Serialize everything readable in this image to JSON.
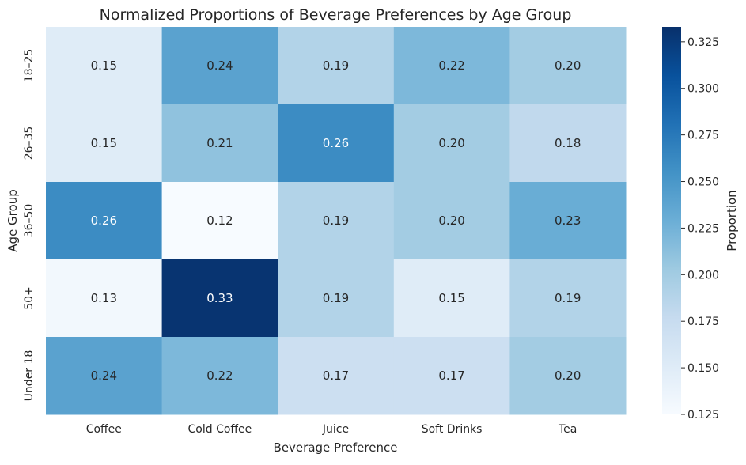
{
  "chart_data": {
    "type": "heatmap",
    "title": "Normalized Proportions of Beverage Preferences by Age Group",
    "xlabel": "Beverage Preference",
    "ylabel": "Age Group",
    "x_categories": [
      "Coffee",
      "Cold Coffee",
      "Juice",
      "Soft Drinks",
      "Tea"
    ],
    "y_categories": [
      "18–25",
      "26–35",
      "36–50",
      "50+",
      "Under 18"
    ],
    "values": [
      [
        0.15,
        0.24,
        0.19,
        0.22,
        0.2
      ],
      [
        0.15,
        0.21,
        0.26,
        0.2,
        0.18
      ],
      [
        0.26,
        0.12,
        0.19,
        0.2,
        0.23
      ],
      [
        0.13,
        0.33,
        0.19,
        0.15,
        0.19
      ],
      [
        0.24,
        0.22,
        0.17,
        0.17,
        0.2
      ]
    ],
    "value_labels": [
      [
        "0.15",
        "0.24",
        "0.19",
        "0.22",
        "0.20"
      ],
      [
        "0.15",
        "0.21",
        "0.26",
        "0.20",
        "0.18"
      ],
      [
        "0.26",
        "0.12",
        "0.19",
        "0.20",
        "0.23"
      ],
      [
        "0.13",
        "0.33",
        "0.19",
        "0.15",
        "0.19"
      ],
      [
        "0.24",
        "0.22",
        "0.17",
        "0.17",
        "0.20"
      ]
    ],
    "colormap": "Blues",
    "colorbar": {
      "label": "Proportion",
      "range": [
        0.125,
        0.333
      ],
      "ticks": [
        0.125,
        0.15,
        0.175,
        0.2,
        0.225,
        0.25,
        0.275,
        0.3,
        0.325
      ],
      "tick_labels": [
        "0.125",
        "0.150",
        "0.175",
        "0.200",
        "0.225",
        "0.250",
        "0.275",
        "0.300",
        "0.325"
      ]
    },
    "grid": false
  }
}
